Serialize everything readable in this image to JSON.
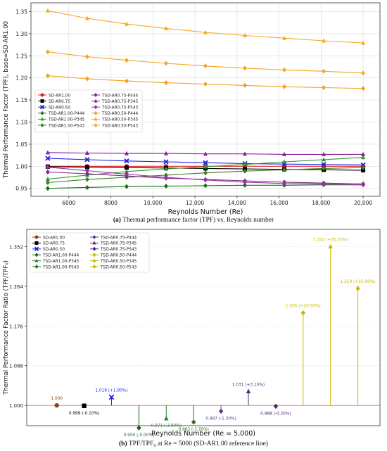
{
  "chart_data": [
    {
      "type": "line",
      "title": "",
      "xlabel": "Reynolds Number (Re)",
      "ylabel": "Thermal Performance Factor (TPF), base=SD-AR1.00",
      "xlim": [
        4200,
        20800
      ],
      "ylim": [
        0.932,
        1.37
      ],
      "x_ticks": [
        6000,
        8000,
        10000,
        12000,
        14000,
        16000,
        18000,
        20000
      ],
      "x_tick_labels": [
        "6000",
        "8000",
        "10,000",
        "12,000",
        "14,000",
        "16,000",
        "18,000",
        "20,000"
      ],
      "y_ticks": [
        0.95,
        1.0,
        1.05,
        1.1,
        1.15,
        1.2,
        1.25,
        1.3,
        1.35
      ],
      "y_tick_labels": [
        "0.95",
        "1.00",
        "1.05",
        "1.10",
        "1.15",
        "1.20",
        "1.25",
        "1.30",
        "1.35"
      ],
      "grid": true,
      "legend_placement": "center-left",
      "x": [
        5000,
        6875,
        8750,
        10625,
        12500,
        14375,
        16250,
        18125,
        20000
      ],
      "series": [
        {
          "name": "SD-AR1.00",
          "color": "#e41a1c",
          "marker": "circle",
          "values": [
            1.0,
            1.0,
            1.0,
            1.0,
            1.0,
            1.0,
            1.0,
            1.0,
            1.0
          ]
        },
        {
          "name": "SD-AR0.75",
          "color": "#000000",
          "marker": "square",
          "values": [
            0.999,
            0.998,
            0.997,
            0.996,
            0.995,
            0.994,
            0.993,
            0.992,
            0.991
          ]
        },
        {
          "name": "SD-AR0.50",
          "color": "#1f1fe0",
          "marker": "x",
          "values": [
            1.018,
            1.015,
            1.012,
            1.01,
            1.008,
            1.006,
            1.005,
            1.004,
            1.003
          ]
        },
        {
          "name": "TSD-AR1.00-P444",
          "color": "#1b6e1b",
          "marker": "diamond",
          "values": [
            0.95,
            0.952,
            0.954,
            0.955,
            0.956,
            0.957,
            0.957,
            0.958,
            0.958
          ]
        },
        {
          "name": "TSD-AR1.00-P345",
          "color": "#2e9a2e",
          "marker": "triangle",
          "values": [
            0.971,
            0.98,
            0.988,
            0.994,
            0.999,
            1.004,
            1.01,
            1.015,
            1.02
          ]
        },
        {
          "name": "TSD-AR1.00-P543",
          "color": "#3f7f1f",
          "marker": "diamond",
          "values": [
            0.963,
            0.97,
            0.975,
            0.98,
            0.985,
            0.989,
            0.992,
            0.995,
            0.997
          ]
        },
        {
          "name": "TSD-AR0.75-P444",
          "color": "#7b2a85",
          "marker": "diamond",
          "values": [
            0.987,
            0.983,
            0.978,
            0.973,
            0.97,
            0.967,
            0.964,
            0.962,
            0.96
          ]
        },
        {
          "name": "TSD-AR0.75-P345",
          "color": "#8b1f9b",
          "marker": "triangle",
          "values": [
            1.031,
            1.03,
            1.029,
            1.029,
            1.028,
            1.028,
            1.027,
            1.027,
            1.027
          ]
        },
        {
          "name": "TSD-AR0.75-P543",
          "color": "#9b2fa8",
          "marker": "diamond",
          "values": [
            0.998,
            0.99,
            0.982,
            0.975,
            0.969,
            0.964,
            0.961,
            0.96,
            0.958
          ]
        },
        {
          "name": "TSD-AR0.50-P444",
          "color": "#f4a020",
          "marker": "diamond",
          "values": [
            1.205,
            1.198,
            1.193,
            1.189,
            1.186,
            1.183,
            1.18,
            1.178,
            1.176
          ]
        },
        {
          "name": "TSD-AR0.50-P345",
          "color": "#f7a820",
          "marker": "triangle",
          "values": [
            1.352,
            1.335,
            1.322,
            1.312,
            1.303,
            1.296,
            1.29,
            1.284,
            1.279
          ]
        },
        {
          "name": "TSD-AR0.50-P543",
          "color": "#f5a623",
          "marker": "diamond",
          "values": [
            1.259,
            1.248,
            1.24,
            1.233,
            1.227,
            1.222,
            1.218,
            1.215,
            1.211
          ]
        }
      ]
    },
    {
      "type": "stem",
      "title": "",
      "xlabel": "Reynolds Number (Re = 5,000)",
      "ylabel": "Thermal Performance Factor Ratio (TPF/TPF₀)",
      "ylim": [
        0.955,
        1.39
      ],
      "y_ticks": [
        1.0,
        1.088,
        1.176,
        1.264,
        1.352
      ],
      "y_tick_labels": [
        "1.000",
        "1.088",
        "1.176",
        "1.264",
        "1.352"
      ],
      "baseline": 1.0,
      "grid": true,
      "legend_placement": "top-left",
      "points": [
        {
          "name": "SD-AR1.00",
          "value": 1.0,
          "label": "1.000",
          "color": "#8b4513",
          "marker": "circle"
        },
        {
          "name": "SD-AR0.75",
          "value": 0.999,
          "label": "0.999 (-0.10%)",
          "color": "#000000",
          "marker": "square"
        },
        {
          "name": "SD-AR0.50",
          "value": 1.018,
          "label": "1.018 (+1.80%)",
          "color": "#1f1fe0",
          "marker": "x"
        },
        {
          "name": "TSD-AR1.00-P444",
          "value": 0.95,
          "label": "0.950 (-5.00%)",
          "color": "#1b5e20",
          "marker": "diamond"
        },
        {
          "name": "TSD-AR1.00-P345",
          "value": 0.971,
          "label": "0.971 (-2.90%)",
          "color": "#2e7d32",
          "marker": "triangle"
        },
        {
          "name": "TSD-AR1.00-P543",
          "value": 0.963,
          "label": "0.963 (-3.70%)",
          "color": "#33691e",
          "marker": "diamond"
        },
        {
          "name": "TSD-AR0.75-P444",
          "value": 0.987,
          "label": "0.987 (-1.30%)",
          "color": "#5b3a8c",
          "marker": "diamond"
        },
        {
          "name": "TSD-AR0.75-P345",
          "value": 1.031,
          "label": "1.031 (+3.10%)",
          "color": "#4a2d7f",
          "marker": "triangle"
        },
        {
          "name": "TSD-AR0.75-P543",
          "value": 0.998,
          "label": "0.998 (-0.20%)",
          "color": "#3f2a6e",
          "marker": "diamond"
        },
        {
          "name": "TSD-AR0.50-P444",
          "value": 1.205,
          "label": "1.205 (+20.50%)",
          "color": "#c9b600",
          "marker": "diamond"
        },
        {
          "name": "TSD-AR0.50-P345",
          "value": 1.352,
          "label": "1.352 (+35.20%)",
          "color": "#c9b600",
          "marker": "triangle"
        },
        {
          "name": "TSD-AR0.50-P543",
          "value": 1.259,
          "label": "1.259 (+25.90%)",
          "color": "#c9b600",
          "marker": "diamond"
        }
      ]
    }
  ],
  "captions": {
    "a_label": "(a)",
    "a_text": "Thermal performance factor (TPF) vs. Reynolds number",
    "b_label": "(b)",
    "b_text": "TPF/TPF₀ at Re = 5000 (SD-AR1.00 reference line)"
  }
}
